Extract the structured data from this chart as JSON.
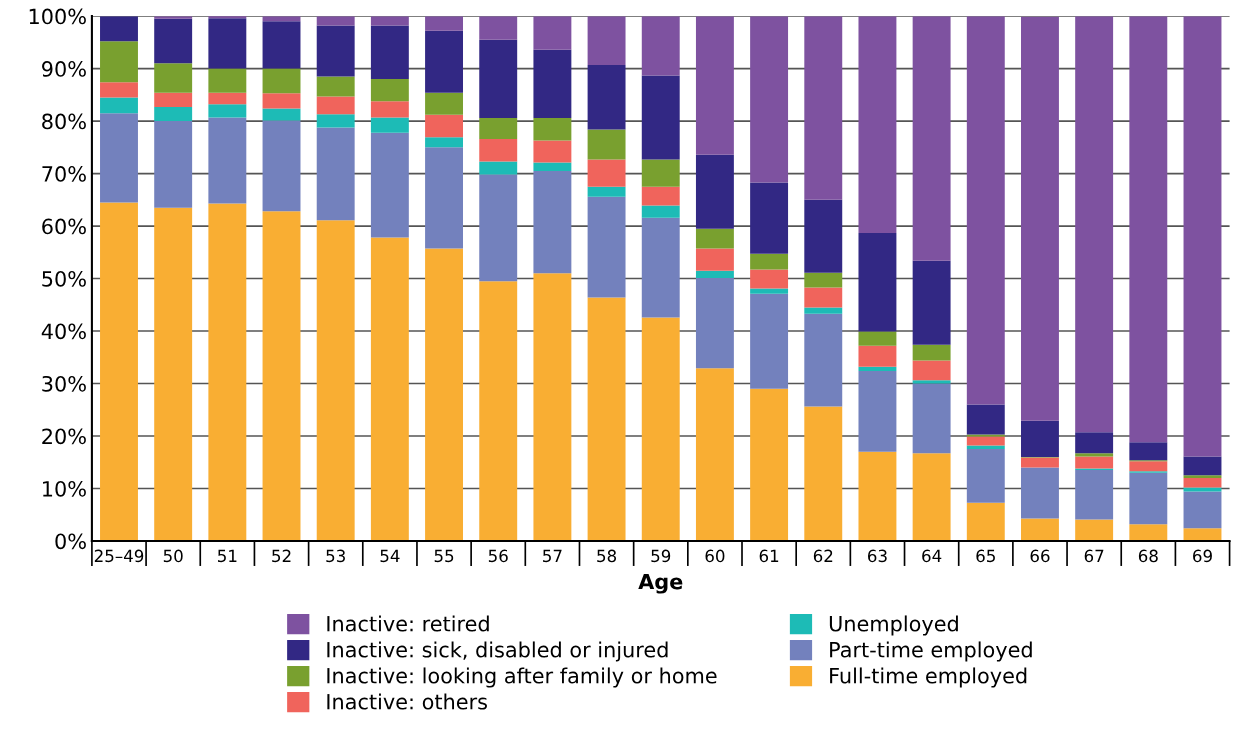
{
  "chart_data": {
    "type": "bar",
    "stacked": true,
    "xlabel": "Age",
    "categories": [
      "25–49",
      "50",
      "51",
      "52",
      "53",
      "54",
      "55",
      "56",
      "57",
      "58",
      "59",
      "60",
      "61",
      "62",
      "63",
      "64",
      "65",
      "66",
      "67",
      "68",
      "69"
    ],
    "series": [
      {
        "name": "Full-time employed",
        "color": "#f9ae33",
        "values": [
          64.5,
          63.5,
          64.3,
          62.8,
          61.1,
          57.8,
          55.7,
          49.5,
          51.0,
          46.4,
          42.6,
          32.9,
          29.0,
          25.6,
          17.0,
          16.7,
          7.3,
          4.3,
          4.1,
          3.2,
          2.4
        ]
      },
      {
        "name": "Part-time employed",
        "color": "#7381bd",
        "values": [
          17.0,
          16.5,
          16.4,
          17.3,
          17.7,
          20.0,
          19.3,
          20.3,
          19.5,
          19.2,
          19.0,
          17.2,
          18.1,
          17.7,
          15.4,
          13.3,
          10.2,
          9.7,
          9.4,
          9.8,
          7.0
        ]
      },
      {
        "name": "Unemployed",
        "color": "#1dbbb6",
        "values": [
          3.0,
          2.7,
          2.5,
          2.3,
          2.5,
          2.9,
          1.9,
          2.5,
          1.6,
          1.9,
          2.3,
          1.4,
          1.0,
          1.2,
          0.8,
          0.6,
          0.7,
          null,
          0.3,
          0.3,
          0.8
        ]
      },
      {
        "name": "Inactive: others",
        "color": "#f0645c",
        "values": [
          2.9,
          2.7,
          2.2,
          2.9,
          3.4,
          3.1,
          4.3,
          4.3,
          4.2,
          5.2,
          3.6,
          4.2,
          3.6,
          3.8,
          4.0,
          3.8,
          1.7,
          1.9,
          2.3,
          1.9,
          1.8
        ]
      },
      {
        "name": "Inactive: looking after family or home",
        "color": "#79a02f",
        "values": [
          7.8,
          5.6,
          4.6,
          4.7,
          3.8,
          4.2,
          4.2,
          4.0,
          4.3,
          5.7,
          5.2,
          3.8,
          3.0,
          2.8,
          2.7,
          3.0,
          0.4,
          0.1,
          0.6,
          0.2,
          0.5
        ]
      },
      {
        "name": "Inactive: sick, disabled or injured",
        "color": "#322884",
        "values": [
          4.8,
          8.5,
          9.6,
          9.0,
          9.7,
          10.2,
          11.8,
          14.9,
          13.0,
          12.3,
          16.0,
          14.1,
          13.6,
          13.9,
          18.8,
          16.0,
          5.7,
          6.9,
          4.0,
          3.4,
          3.6
        ]
      },
      {
        "name": "Inactive: retired",
        "color": "#7e52a0",
        "values": [
          0.0,
          0.5,
          0.5,
          1.0,
          1.8,
          1.8,
          2.8,
          4.5,
          6.4,
          9.3,
          11.3,
          26.4,
          31.7,
          35.0,
          41.3,
          46.6,
          74.0,
          77.0,
          79.3,
          81.2,
          83.9
        ]
      }
    ],
    "ylim": [
      0,
      100
    ],
    "yticks": [
      {
        "value": 0,
        "label": "0%"
      },
      {
        "value": 10,
        "label": "10%"
      },
      {
        "value": 20,
        "label": "20%"
      },
      {
        "value": 30,
        "label": "30%"
      },
      {
        "value": 40,
        "label": "40%"
      },
      {
        "value": 50,
        "label": "50%"
      },
      {
        "value": 60,
        "label": "60%"
      },
      {
        "value": 70,
        "label": "70%"
      },
      {
        "value": 80,
        "label": "80%"
      },
      {
        "value": 90,
        "label": "90%"
      },
      {
        "value": 100,
        "label": "100%"
      }
    ],
    "grid": "y",
    "legend": "bottom"
  }
}
